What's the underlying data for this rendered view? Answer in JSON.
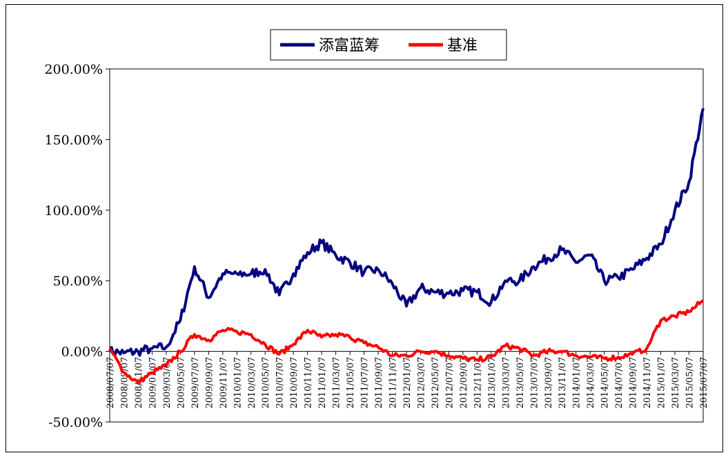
{
  "chart_data": {
    "type": "line",
    "title": "",
    "xlabel": "",
    "ylabel": "",
    "ylim": [
      -0.5,
      2.0
    ],
    "yticks": [
      2.0,
      1.5,
      1.0,
      0.5,
      0.0,
      -0.5
    ],
    "ytick_labels": [
      "200.00%",
      "150.00%",
      "100.00%",
      "50.00%",
      "0.00%",
      "-50.00%"
    ],
    "grid": false,
    "legend": "top-center",
    "xtick_labels": [
      "2008/07/07",
      "2008/09/07",
      "2008/11/07",
      "2009/01/07",
      "2009/03/07",
      "2009/05/07",
      "2009/07/07",
      "2009/09/07",
      "2009/11/07",
      "2010/01/07",
      "2010/03/07",
      "2010/05/07",
      "2010/07/07",
      "2010/09/07",
      "2010/11/07",
      "2011/01/07",
      "2011/03/07",
      "2011/05/07",
      "2011/07/07",
      "2011/09/07",
      "2011/11/07",
      "2012/01/07",
      "2012/03/07",
      "2012/05/07",
      "2012/07/07",
      "2012/09/07",
      "2012/11/07",
      "2013/01/07",
      "2013/03/07",
      "2013/05/07",
      "2013/07/07",
      "2013/09/07",
      "2013/11/07",
      "2014/01/07",
      "2014/03/07",
      "2014/05/07",
      "2014/07/07",
      "2014/09/07",
      "2014/11/07",
      "2015/01/07",
      "2015/03/07",
      "2015/05/07",
      "2015/07/07"
    ],
    "x": [
      "2008-07",
      "2008-09",
      "2008-11",
      "2009-01",
      "2009-03",
      "2009-05",
      "2009-07",
      "2009-09",
      "2009-11",
      "2010-01",
      "2010-03",
      "2010-05",
      "2010-07",
      "2010-09",
      "2010-11",
      "2011-01",
      "2011-03",
      "2011-05",
      "2011-07",
      "2011-09",
      "2011-11",
      "2012-01",
      "2012-03",
      "2012-05",
      "2012-07",
      "2012-09",
      "2012-11",
      "2013-01",
      "2013-03",
      "2013-05",
      "2013-07",
      "2013-09",
      "2013-11",
      "2014-01",
      "2014-03",
      "2014-05",
      "2014-07",
      "2014-09",
      "2014-11",
      "2015-01",
      "2015-03",
      "2015-05",
      "2015-07"
    ],
    "series": [
      {
        "name": "添富蓝筹",
        "color": "#000080",
        "values": [
          0.0,
          -0.01,
          0.0,
          0.02,
          0.03,
          0.22,
          0.6,
          0.38,
          0.55,
          0.55,
          0.55,
          0.58,
          0.4,
          0.55,
          0.7,
          0.77,
          0.68,
          0.63,
          0.56,
          0.58,
          0.48,
          0.32,
          0.45,
          0.42,
          0.41,
          0.43,
          0.42,
          0.35,
          0.5,
          0.5,
          0.6,
          0.66,
          0.72,
          0.63,
          0.68,
          0.5,
          0.52,
          0.58,
          0.66,
          0.76,
          1.0,
          1.2,
          1.72
        ]
      },
      {
        "name": "基准",
        "color": "#ff0000",
        "values": [
          0.02,
          -0.15,
          -0.22,
          -0.15,
          -0.1,
          0.0,
          0.12,
          0.08,
          0.15,
          0.14,
          0.12,
          0.05,
          -0.02,
          0.05,
          0.15,
          0.1,
          0.12,
          0.1,
          0.06,
          0.03,
          -0.03,
          -0.03,
          0.0,
          0.0,
          -0.03,
          -0.05,
          -0.06,
          -0.04,
          0.04,
          0.02,
          -0.03,
          0.0,
          0.0,
          -0.03,
          -0.04,
          -0.05,
          -0.04,
          -0.02,
          0.02,
          0.22,
          0.25,
          0.28,
          0.36
        ]
      }
    ]
  }
}
